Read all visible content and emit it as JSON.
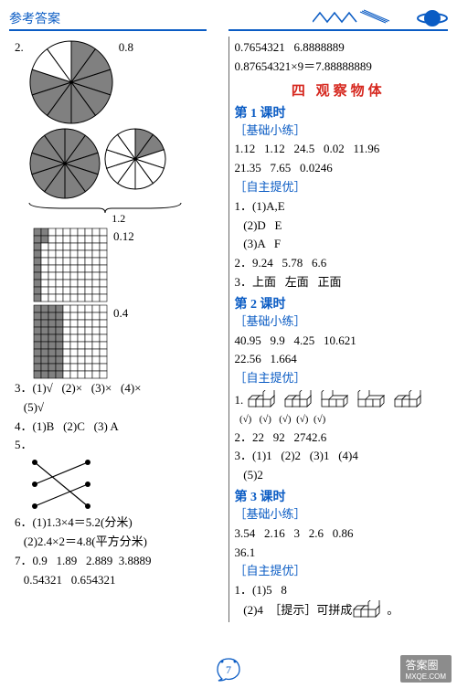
{
  "header": {
    "title": "参考答案"
  },
  "left": {
    "q2_num": "2.",
    "pie1_label": "0.8",
    "pie2_underlabel": "1.2",
    "grid1_label": "0.12",
    "grid2_label": "0.4",
    "q3": "3．(1)√   (2)×   (3)×   (4)×",
    "q3b": "   (5)√",
    "q4": "4．(1)B   (2)C   (3) A",
    "q5": "5．",
    "q6a": "6．(1)1.3×4＝5.2(分米)",
    "q6b": "   (2)2.4×2＝4.8(平方分米)",
    "q7a": "7．0.9   1.89   2.889  3.8889",
    "q7b": "   0.54321   0.654321",
    "pies": {
      "pie1": {
        "slices": 10,
        "filled": 8,
        "fill": "#808080",
        "radius": 45
      },
      "pie2": {
        "slices": 10,
        "filled": 10,
        "fill": "#808080",
        "radius": 38
      },
      "pie3": {
        "slices": 10,
        "filled": 2,
        "fill": "#808080",
        "radius": 33
      }
    },
    "grids": {
      "g1": {
        "rows": 10,
        "cols": 10,
        "filledCells": 12,
        "cell": 8,
        "fill": "#808080"
      },
      "g2": {
        "rows": 10,
        "cols": 10,
        "filledCells": 40,
        "cell": 8,
        "fill": "#808080"
      }
    }
  },
  "right": {
    "top1": "0.7654321   6.8888889",
    "top2": "0.87654321×9＝7.88888889",
    "section": "四   观察物体",
    "l1": {
      "title": "第 1 课时",
      "h1": "［基础小练］",
      "a": "1.12   1.12   24.5   0.02   11.96",
      "b": "21.35   7.65   0.0246",
      "h2": "［自主提优］",
      "c": "1．(1)A,E",
      "d": "   (2)D   E",
      "e": "   (3)A   F",
      "f": "2．9.24   5.78   6.6",
      "g": "3．上面   左面   正面"
    },
    "l2": {
      "title": "第 2 课时",
      "h1": "［基础小练］",
      "a": "40.95   9.9   4.25   10.621",
      "b": "22.56   1.664",
      "h2": "［自主提优］",
      "c": "1.",
      "check": "  (√)   (√)   (√)  (√)  (√)",
      "d": "2．22   92   2742.6",
      "e": "3．(1)1   (2)2   (3)1   (4)4",
      "f": "   (5)2"
    },
    "l3": {
      "title": "第 3 课时",
      "h1": "［基础小练］",
      "a": "3.54   2.16   3   2.6   0.86",
      "b": "36.1",
      "h2": "［自主提优］",
      "c": "1．(1)5   8",
      "d": "   (2)4  ［提示］可拼成",
      "e": "。"
    }
  },
  "page": "7",
  "watermark": {
    "l1": "答案圈",
    "l2": "MXQE.COM"
  },
  "colors": {
    "blue": "#0b5cc4",
    "red": "#d6281f",
    "grey": "#808080"
  }
}
